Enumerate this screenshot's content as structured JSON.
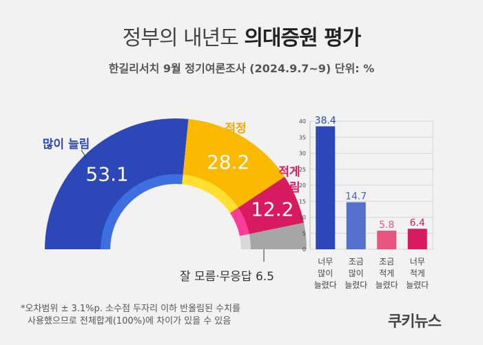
{
  "header": {
    "title_normal": "정부의 내년도 ",
    "title_bold": "의대증원 평가",
    "subtitle": "한길리서치 9월 정기여론조사 (2024.9.7~9) 단위: %"
  },
  "chart_data": [
    {
      "type": "pie",
      "style": "half-donut",
      "slices": [
        {
          "label": "많이 늘림",
          "value": 53.1,
          "color": "#2c48b8"
        },
        {
          "label": "적정",
          "value": 28.2,
          "color": "#fbb900"
        },
        {
          "label": "적게 늘림",
          "value": 12.2,
          "color": "#d81b60"
        },
        {
          "label": "잘 모름·무응답",
          "value": 6.5,
          "color": "#a6a6a6"
        }
      ],
      "value_labels": [
        "53.1",
        "28.2",
        "12.2"
      ],
      "outside_labels": {
        "many": "많이 늘림",
        "adequate": "적정",
        "few_line1": "적게",
        "few_line2": "늘림",
        "unknown": "잘 모름·무응답 6.5"
      }
    },
    {
      "type": "bar",
      "categories": [
        [
          "너무",
          "많이",
          "늘렸다"
        ],
        [
          "조금",
          "많이",
          "늘렸다"
        ],
        [
          "조금",
          "적게",
          "늘렸다"
        ],
        [
          "너무",
          "적게",
          "늘렸다"
        ]
      ],
      "values": [
        38.4,
        14.7,
        5.8,
        6.4
      ],
      "value_labels": [
        "38.4",
        "14.7",
        "5.8",
        "6.4"
      ],
      "colors": [
        "#2c48b8",
        "#5470cc",
        "#e8557e",
        "#d81b60"
      ],
      "label_colors": [
        "#2c48b8",
        "#4a63c0",
        "#e8557e",
        "#d81b60"
      ],
      "ylim": [
        0,
        40
      ],
      "yticks": [
        "0",
        "5",
        "10",
        "15",
        "20",
        "25",
        "30",
        "35",
        "40"
      ],
      "grid": true
    }
  ],
  "footnote": {
    "line1": "*오차범위 ± 3.1%p. 소수점 두자리 이하 반올림된 수치를",
    "line2": "사용했으므로 전체합계(100%)에 차이가 있을 수 있음"
  },
  "brand": "쿠키뉴스"
}
